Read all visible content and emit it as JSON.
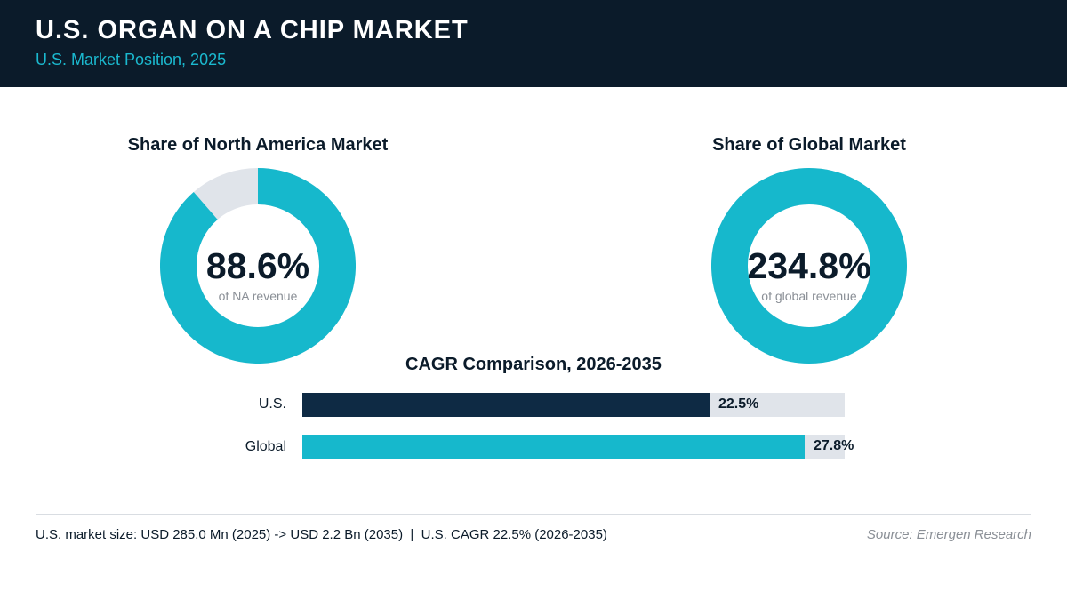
{
  "header": {
    "title": "U.S. ORGAN ON A CHIP MARKET",
    "subtitle": "U.S. Market Position, 2025"
  },
  "colors": {
    "navy": "#0b1b2a",
    "bar_navy": "#0e2a44",
    "teal": "#16b8cc",
    "track": "#e0e4ea"
  },
  "chart_data": [
    {
      "type": "pie",
      "title": "Share of North America Market",
      "value": 88.6,
      "value_label": "88.6%",
      "caption": "of NA revenue"
    },
    {
      "type": "pie",
      "title": "Share of Global Market",
      "value": 234.8,
      "value_label": "234.8%",
      "caption": "of global revenue"
    },
    {
      "type": "bar",
      "title": "CAGR Comparison, 2026-2035",
      "categories": [
        "U.S.",
        "Global"
      ],
      "values": [
        22.5,
        27.8
      ],
      "value_labels": [
        "22.5%",
        "27.8%"
      ],
      "xlim": [
        0,
        30
      ]
    }
  ],
  "footer": {
    "note": "U.S. market size: USD 285.0 Mn (2025) -> USD 2.2 Bn (2035)  |  U.S. CAGR 22.5% (2026-2035)",
    "source": "Source: Emergen Research"
  }
}
